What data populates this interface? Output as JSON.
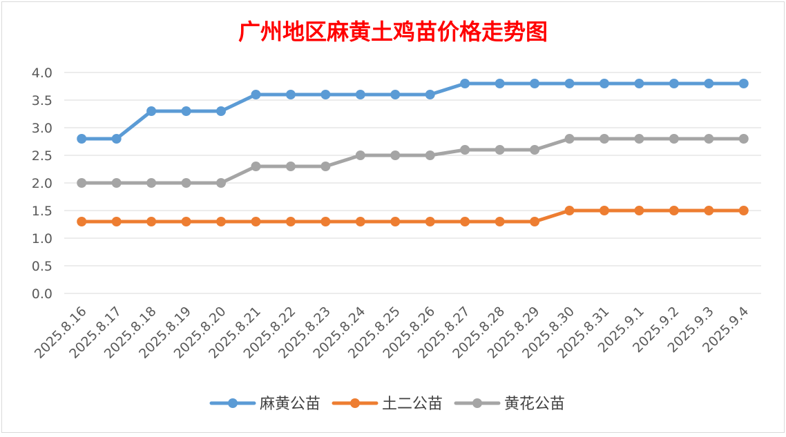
{
  "chart_data": {
    "type": "line",
    "title": "广州地区麻黄土鸡苗价格走势图",
    "title_color": "#ff0000",
    "xlabel": "",
    "ylabel": "",
    "ylim": [
      0,
      4.0
    ],
    "yticks": [
      "0.0",
      "0.5",
      "1.0",
      "1.5",
      "2.0",
      "2.5",
      "3.0",
      "3.5",
      "4.0"
    ],
    "grid": true,
    "legend_position": "bottom",
    "categories": [
      "2025.8.16",
      "2025.8.17",
      "2025.8.18",
      "2025.8.19",
      "2025.8.20",
      "2025.8.21",
      "2025.8.22",
      "2025.8.23",
      "2025.8.24",
      "2025.8.25",
      "2025.8.26",
      "2025.8.27",
      "2025.8.28",
      "2025.8.29",
      "2025.8.30",
      "2025.8.31",
      "2025.9.1",
      "2025.9.2",
      "2025.9.3",
      "2025.9.4"
    ],
    "series": [
      {
        "name": "麻黄公苗",
        "color": "#5b9bd5",
        "values": [
          2.8,
          2.8,
          3.3,
          3.3,
          3.3,
          3.6,
          3.6,
          3.6,
          3.6,
          3.6,
          3.6,
          3.8,
          3.8,
          3.8,
          3.8,
          3.8,
          3.8,
          3.8,
          3.8,
          3.8
        ]
      },
      {
        "name": "土二公苗",
        "color": "#ed7d31",
        "values": [
          1.3,
          1.3,
          1.3,
          1.3,
          1.3,
          1.3,
          1.3,
          1.3,
          1.3,
          1.3,
          1.3,
          1.3,
          1.3,
          1.3,
          1.5,
          1.5,
          1.5,
          1.5,
          1.5,
          1.5
        ]
      },
      {
        "name": "黄花公苗",
        "color": "#a5a5a5",
        "values": [
          2.0,
          2.0,
          2.0,
          2.0,
          2.0,
          2.3,
          2.3,
          2.3,
          2.5,
          2.5,
          2.5,
          2.6,
          2.6,
          2.6,
          2.8,
          2.8,
          2.8,
          2.8,
          2.8,
          2.8
        ]
      }
    ]
  }
}
